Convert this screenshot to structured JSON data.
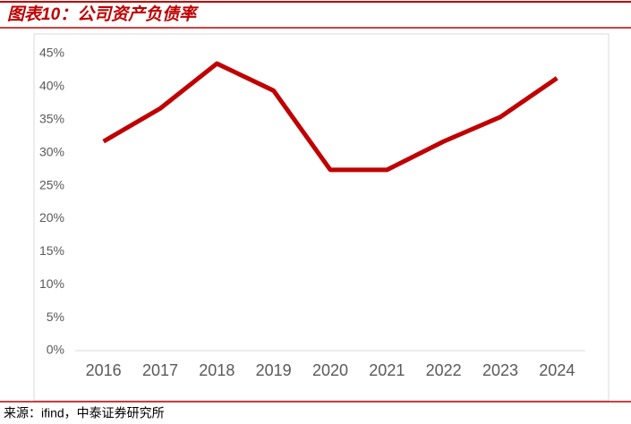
{
  "chart_data": {
    "type": "line",
    "title": "图表10：公司资产负债率",
    "categories": [
      "2016",
      "2017",
      "2018",
      "2019",
      "2020",
      "2021",
      "2022",
      "2023",
      "2024"
    ],
    "values": [
      31.7,
      36.7,
      43.5,
      39.4,
      27.4,
      27.4,
      31.7,
      35.4,
      41.3
    ],
    "color": "#c00000",
    "ylim": [
      0,
      45
    ],
    "yticks": [
      {
        "value": 0,
        "label": "0%"
      },
      {
        "value": 5,
        "label": "5%"
      },
      {
        "value": 10,
        "label": "10%"
      },
      {
        "value": 15,
        "label": "15%"
      },
      {
        "value": 20,
        "label": "20%"
      },
      {
        "value": 25,
        "label": "25%"
      },
      {
        "value": 30,
        "label": "30%"
      },
      {
        "value": 35,
        "label": "35%"
      },
      {
        "value": 40,
        "label": "40%"
      },
      {
        "value": 45,
        "label": "45%"
      }
    ],
    "grid": false
  },
  "footer": {
    "source": "来源：ifind，中泰证券研究所"
  }
}
